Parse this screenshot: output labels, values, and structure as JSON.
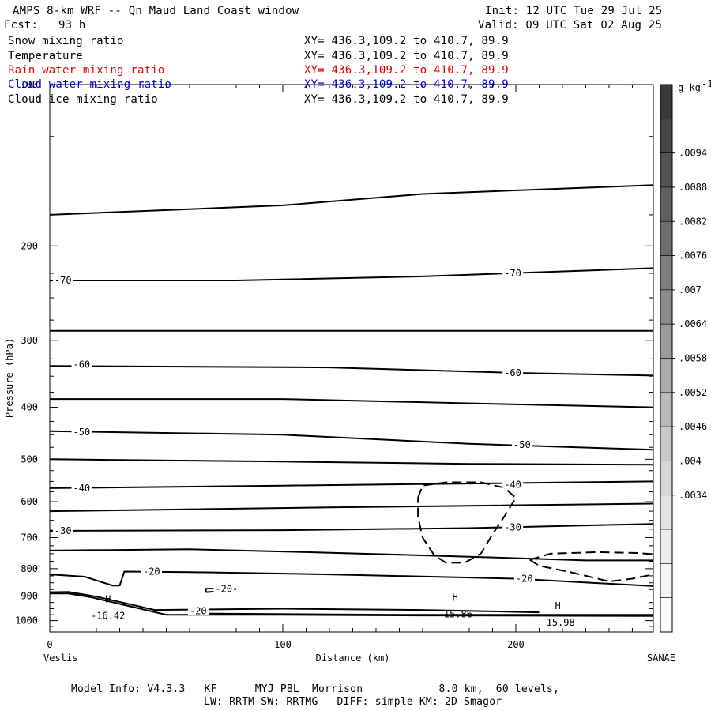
{
  "header": {
    "title": "AMPS 8-km WRF -- Qn Maud Land Coast window",
    "init": "Init: 12 UTC Tue 29 Jul 25",
    "fcst": "Fcst:   93 h",
    "valid": "Valid: 09 UTC Sat 02 Aug 25"
  },
  "fields": [
    {
      "name": "Snow mixing ratio",
      "xy": "XY= 436.3,109.2 to 410.7, 89.9",
      "color": "#000000"
    },
    {
      "name": "Temperature",
      "xy": "XY= 436.3,109.2 to 410.7, 89.9",
      "color": "#000000"
    },
    {
      "name": "Rain water mixing ratio",
      "xy": "XY= 436.3,109.2 to 410.7, 89.9",
      "color": "#e00000"
    },
    {
      "name": "Cloud water mixing ratio",
      "xy": "XY= 436.3,109.2 to 410.7, 89.9",
      "color": "#0000cc"
    },
    {
      "name": "Cloud ice mixing ratio",
      "xy": "XY= 436.3,109.2 to 410.7, 89.9",
      "color": "#000000"
    }
  ],
  "footer": {
    "line1": "Model Info: V4.3.3   KF      MYJ PBL  Morrison            8.0 km,  60 levels,",
    "line2": "LW: RRTM SW: RRTMG   DIFF: simple KM: 2D Smagor"
  },
  "chart_data": {
    "type": "line",
    "xlabel": "Distance (km)",
    "ylabel": "Pressure (hPa)",
    "x_ticks": [
      0,
      100,
      200
    ],
    "y_ticks": [
      200,
      300,
      400,
      500,
      600,
      700,
      800,
      900,
      1000
    ],
    "xlim": [
      0,
      259
    ],
    "ylim": [
      1050,
      100
    ],
    "y_scale": "log",
    "left_endpoint": "Veslis",
    "right_endpoint": "SANAE",
    "colorbar": {
      "unit": "g kg",
      "unit_exp": "-1",
      "labels": [
        ".0094",
        ".0088",
        ".0082",
        ".0076",
        ".007",
        ".0064",
        ".0058",
        ".0052",
        ".0046",
        ".004",
        ".0034"
      ],
      "shades": [
        "#3a3a3a",
        "#454545",
        "#525252",
        "#606060",
        "#6e6e6e",
        "#7d7d7d",
        "#8c8c8c",
        "#9b9b9b",
        "#aaaaaa",
        "#b9b9b9",
        "#c8c8c8",
        "#d6d6d6",
        "#e2e2e2",
        "#ececec",
        "#f5f5f5",
        "#fbfbfb"
      ]
    },
    "isotherm_labels": [
      {
        "text": "-70",
        "x": 2,
        "p": 232
      },
      {
        "text": "-70",
        "x": 195,
        "p": 225
      },
      {
        "text": "-60",
        "x": 10,
        "p": 333
      },
      {
        "text": "-60",
        "x": 195,
        "p": 345
      },
      {
        "text": "-50",
        "x": 10,
        "p": 445
      },
      {
        "text": "-50",
        "x": 199,
        "p": 470
      },
      {
        "text": "-40",
        "x": 10,
        "p": 566
      },
      {
        "text": "-40",
        "x": 195,
        "p": 558
      },
      {
        "text": "-30",
        "x": 2,
        "p": 680
      },
      {
        "text": "-30",
        "x": 195,
        "p": 670
      },
      {
        "text": "-20",
        "x": 40,
        "p": 810
      },
      {
        "text": "-20",
        "x": 71,
        "p": 873
      },
      {
        "text": "-20",
        "x": 60,
        "p": 960
      },
      {
        "text": "-20",
        "x": 200,
        "p": 835
      }
    ],
    "extrema": [
      {
        "label": "H",
        "value": "-16.42",
        "x": 25,
        "p": 925
      },
      {
        "label": "H",
        "value": "-15.86",
        "x": 174,
        "p": 918
      },
      {
        "label": "H",
        "value": "-15.98",
        "x": 218,
        "p": 952
      }
    ]
  }
}
